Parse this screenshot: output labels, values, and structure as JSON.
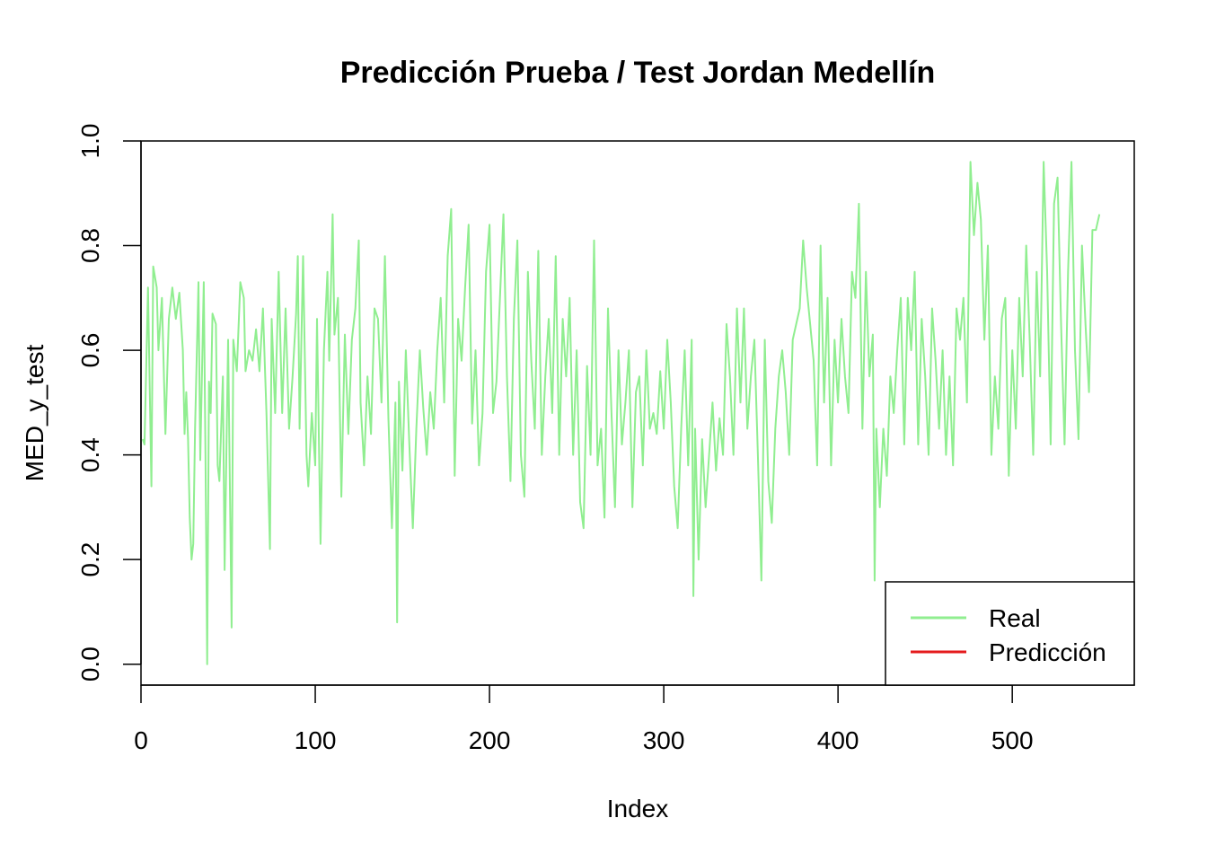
{
  "chart_data": {
    "type": "line",
    "title": "Predicción Prueba / Test Jordan Medellín",
    "xlabel": "Index",
    "ylabel": "MED_y_test",
    "xlim": [
      0,
      570
    ],
    "ylim": [
      -0.04,
      1.0
    ],
    "x_ticks": [
      0,
      100,
      200,
      300,
      400,
      500
    ],
    "x_tick_labels": [
      "0",
      "100",
      "200",
      "300",
      "400",
      "500"
    ],
    "y_ticks": [
      0.0,
      0.2,
      0.4,
      0.6,
      0.8,
      1.0
    ],
    "y_tick_labels": [
      "0.0",
      "0.2",
      "0.4",
      "0.6",
      "0.8",
      "1.0"
    ],
    "legend_position": "bottom-right",
    "series": [
      {
        "name": "Real",
        "color": "#90EE90",
        "keypoints": [
          [
            1,
            0.43
          ],
          [
            2,
            0.42
          ],
          [
            4,
            0.72
          ],
          [
            6,
            0.34
          ],
          [
            7,
            0.76
          ],
          [
            9,
            0.72
          ],
          [
            10,
            0.6
          ],
          [
            12,
            0.7
          ],
          [
            14,
            0.44
          ],
          [
            16,
            0.66
          ],
          [
            18,
            0.72
          ],
          [
            20,
            0.66
          ],
          [
            22,
            0.71
          ],
          [
            24,
            0.6
          ],
          [
            25,
            0.44
          ],
          [
            26,
            0.52
          ],
          [
            27,
            0.43
          ],
          [
            28,
            0.28
          ],
          [
            29,
            0.2
          ],
          [
            30,
            0.23
          ],
          [
            31,
            0.45
          ],
          [
            33,
            0.73
          ],
          [
            34,
            0.39
          ],
          [
            36,
            0.73
          ],
          [
            37,
            0.4
          ],
          [
            38,
            0.0
          ],
          [
            39,
            0.54
          ],
          [
            40,
            0.48
          ],
          [
            41,
            0.67
          ],
          [
            43,
            0.65
          ],
          [
            44,
            0.38
          ],
          [
            45,
            0.35
          ],
          [
            47,
            0.55
          ],
          [
            48,
            0.18
          ],
          [
            50,
            0.62
          ],
          [
            52,
            0.07
          ],
          [
            53,
            0.62
          ],
          [
            55,
            0.56
          ],
          [
            57,
            0.73
          ],
          [
            59,
            0.7
          ],
          [
            60,
            0.56
          ],
          [
            62,
            0.6
          ],
          [
            64,
            0.58
          ],
          [
            66,
            0.64
          ],
          [
            68,
            0.56
          ],
          [
            70,
            0.68
          ],
          [
            72,
            0.48
          ],
          [
            74,
            0.22
          ],
          [
            75,
            0.66
          ],
          [
            77,
            0.48
          ],
          [
            79,
            0.75
          ],
          [
            81,
            0.48
          ],
          [
            83,
            0.68
          ],
          [
            85,
            0.45
          ],
          [
            87,
            0.55
          ],
          [
            89,
            0.67
          ],
          [
            90,
            0.78
          ],
          [
            91,
            0.45
          ],
          [
            93,
            0.78
          ],
          [
            95,
            0.4
          ],
          [
            96,
            0.34
          ],
          [
            98,
            0.48
          ],
          [
            100,
            0.38
          ],
          [
            101,
            0.66
          ],
          [
            103,
            0.23
          ],
          [
            105,
            0.6
          ],
          [
            107,
            0.75
          ],
          [
            108,
            0.58
          ],
          [
            110,
            0.86
          ],
          [
            111,
            0.63
          ],
          [
            113,
            0.7
          ],
          [
            115,
            0.32
          ],
          [
            117,
            0.63
          ],
          [
            119,
            0.44
          ],
          [
            121,
            0.62
          ],
          [
            123,
            0.68
          ],
          [
            125,
            0.81
          ],
          [
            126,
            0.5
          ],
          [
            128,
            0.38
          ],
          [
            130,
            0.55
          ],
          [
            132,
            0.44
          ],
          [
            134,
            0.68
          ],
          [
            136,
            0.66
          ],
          [
            138,
            0.5
          ],
          [
            140,
            0.78
          ],
          [
            142,
            0.47
          ],
          [
            144,
            0.26
          ],
          [
            146,
            0.5
          ],
          [
            147,
            0.08
          ],
          [
            148,
            0.54
          ],
          [
            150,
            0.37
          ],
          [
            152,
            0.6
          ],
          [
            154,
            0.42
          ],
          [
            156,
            0.26
          ],
          [
            158,
            0.45
          ],
          [
            160,
            0.6
          ],
          [
            162,
            0.49
          ],
          [
            164,
            0.4
          ],
          [
            166,
            0.52
          ],
          [
            168,
            0.45
          ],
          [
            170,
            0.6
          ],
          [
            172,
            0.7
          ],
          [
            174,
            0.5
          ],
          [
            176,
            0.78
          ],
          [
            178,
            0.87
          ],
          [
            180,
            0.36
          ],
          [
            182,
            0.66
          ],
          [
            184,
            0.58
          ],
          [
            186,
            0.72
          ],
          [
            188,
            0.84
          ],
          [
            190,
            0.46
          ],
          [
            192,
            0.6
          ],
          [
            194,
            0.38
          ],
          [
            196,
            0.48
          ],
          [
            198,
            0.75
          ],
          [
            200,
            0.84
          ],
          [
            202,
            0.48
          ],
          [
            204,
            0.54
          ],
          [
            206,
            0.7
          ],
          [
            208,
            0.86
          ],
          [
            210,
            0.55
          ],
          [
            212,
            0.35
          ],
          [
            214,
            0.66
          ],
          [
            216,
            0.81
          ],
          [
            218,
            0.4
          ],
          [
            220,
            0.32
          ],
          [
            222,
            0.75
          ],
          [
            224,
            0.58
          ],
          [
            226,
            0.45
          ],
          [
            228,
            0.79
          ],
          [
            230,
            0.4
          ],
          [
            232,
            0.55
          ],
          [
            234,
            0.66
          ],
          [
            236,
            0.48
          ],
          [
            238,
            0.78
          ],
          [
            240,
            0.4
          ],
          [
            242,
            0.66
          ],
          [
            244,
            0.55
          ],
          [
            246,
            0.7
          ],
          [
            248,
            0.4
          ],
          [
            250,
            0.6
          ],
          [
            252,
            0.31
          ],
          [
            254,
            0.26
          ],
          [
            256,
            0.57
          ],
          [
            258,
            0.4
          ],
          [
            260,
            0.81
          ],
          [
            262,
            0.38
          ],
          [
            264,
            0.45
          ],
          [
            266,
            0.28
          ],
          [
            268,
            0.68
          ],
          [
            270,
            0.48
          ],
          [
            272,
            0.3
          ],
          [
            274,
            0.6
          ],
          [
            276,
            0.42
          ],
          [
            278,
            0.5
          ],
          [
            280,
            0.6
          ],
          [
            282,
            0.3
          ],
          [
            284,
            0.52
          ],
          [
            286,
            0.55
          ],
          [
            288,
            0.38
          ],
          [
            290,
            0.6
          ],
          [
            292,
            0.45
          ],
          [
            294,
            0.48
          ],
          [
            296,
            0.44
          ],
          [
            298,
            0.56
          ],
          [
            300,
            0.45
          ],
          [
            302,
            0.62
          ],
          [
            304,
            0.5
          ],
          [
            306,
            0.34
          ],
          [
            308,
            0.26
          ],
          [
            310,
            0.45
          ],
          [
            312,
            0.6
          ],
          [
            314,
            0.38
          ],
          [
            316,
            0.62
          ],
          [
            317,
            0.13
          ],
          [
            318,
            0.45
          ],
          [
            320,
            0.2
          ],
          [
            322,
            0.43
          ],
          [
            324,
            0.3
          ],
          [
            326,
            0.4
          ],
          [
            328,
            0.5
          ],
          [
            330,
            0.37
          ],
          [
            332,
            0.47
          ],
          [
            334,
            0.4
          ],
          [
            336,
            0.65
          ],
          [
            338,
            0.55
          ],
          [
            340,
            0.4
          ],
          [
            342,
            0.68
          ],
          [
            344,
            0.5
          ],
          [
            346,
            0.68
          ],
          [
            348,
            0.45
          ],
          [
            350,
            0.55
          ],
          [
            352,
            0.62
          ],
          [
            354,
            0.4
          ],
          [
            356,
            0.16
          ],
          [
            358,
            0.62
          ],
          [
            360,
            0.35
          ],
          [
            362,
            0.27
          ],
          [
            364,
            0.45
          ],
          [
            366,
            0.55
          ],
          [
            368,
            0.6
          ],
          [
            370,
            0.52
          ],
          [
            372,
            0.4
          ],
          [
            374,
            0.62
          ],
          [
            376,
            0.65
          ],
          [
            378,
            0.68
          ],
          [
            380,
            0.81
          ],
          [
            382,
            0.72
          ],
          [
            384,
            0.65
          ],
          [
            386,
            0.58
          ],
          [
            388,
            0.38
          ],
          [
            390,
            0.8
          ],
          [
            392,
            0.5
          ],
          [
            394,
            0.7
          ],
          [
            396,
            0.38
          ],
          [
            398,
            0.62
          ],
          [
            400,
            0.5
          ],
          [
            402,
            0.66
          ],
          [
            404,
            0.55
          ],
          [
            406,
            0.48
          ],
          [
            408,
            0.75
          ],
          [
            410,
            0.7
          ],
          [
            412,
            0.88
          ],
          [
            414,
            0.45
          ],
          [
            416,
            0.75
          ],
          [
            418,
            0.55
          ],
          [
            420,
            0.63
          ],
          [
            421,
            0.16
          ],
          [
            422,
            0.45
          ],
          [
            424,
            0.3
          ],
          [
            426,
            0.45
          ],
          [
            428,
            0.36
          ],
          [
            430,
            0.55
          ],
          [
            432,
            0.48
          ],
          [
            434,
            0.6
          ],
          [
            436,
            0.7
          ],
          [
            438,
            0.42
          ],
          [
            440,
            0.7
          ],
          [
            442,
            0.6
          ],
          [
            444,
            0.75
          ],
          [
            446,
            0.42
          ],
          [
            448,
            0.66
          ],
          [
            450,
            0.55
          ],
          [
            452,
            0.4
          ],
          [
            454,
            0.68
          ],
          [
            456,
            0.58
          ],
          [
            458,
            0.45
          ],
          [
            460,
            0.6
          ],
          [
            462,
            0.4
          ],
          [
            464,
            0.55
          ],
          [
            466,
            0.38
          ],
          [
            468,
            0.68
          ],
          [
            470,
            0.62
          ],
          [
            472,
            0.7
          ],
          [
            474,
            0.5
          ],
          [
            476,
            0.96
          ],
          [
            478,
            0.82
          ],
          [
            480,
            0.92
          ],
          [
            482,
            0.85
          ],
          [
            484,
            0.62
          ],
          [
            486,
            0.8
          ],
          [
            488,
            0.4
          ],
          [
            490,
            0.55
          ],
          [
            492,
            0.45
          ],
          [
            494,
            0.66
          ],
          [
            496,
            0.7
          ],
          [
            498,
            0.36
          ],
          [
            500,
            0.6
          ],
          [
            502,
            0.45
          ],
          [
            504,
            0.7
          ],
          [
            506,
            0.55
          ],
          [
            508,
            0.8
          ],
          [
            510,
            0.62
          ],
          [
            512,
            0.4
          ],
          [
            514,
            0.75
          ],
          [
            516,
            0.55
          ],
          [
            518,
            0.96
          ],
          [
            520,
            0.75
          ],
          [
            522,
            0.42
          ],
          [
            524,
            0.88
          ],
          [
            526,
            0.93
          ],
          [
            528,
            0.65
          ],
          [
            530,
            0.42
          ],
          [
            532,
            0.75
          ],
          [
            534,
            0.96
          ],
          [
            536,
            0.6
          ],
          [
            538,
            0.43
          ],
          [
            540,
            0.8
          ],
          [
            542,
            0.65
          ],
          [
            544,
            0.52
          ],
          [
            546,
            0.83
          ],
          [
            548,
            0.83
          ],
          [
            550,
            0.86
          ]
        ]
      },
      {
        "name": "Predicción",
        "color": "#E41A1C",
        "values": []
      }
    ]
  }
}
